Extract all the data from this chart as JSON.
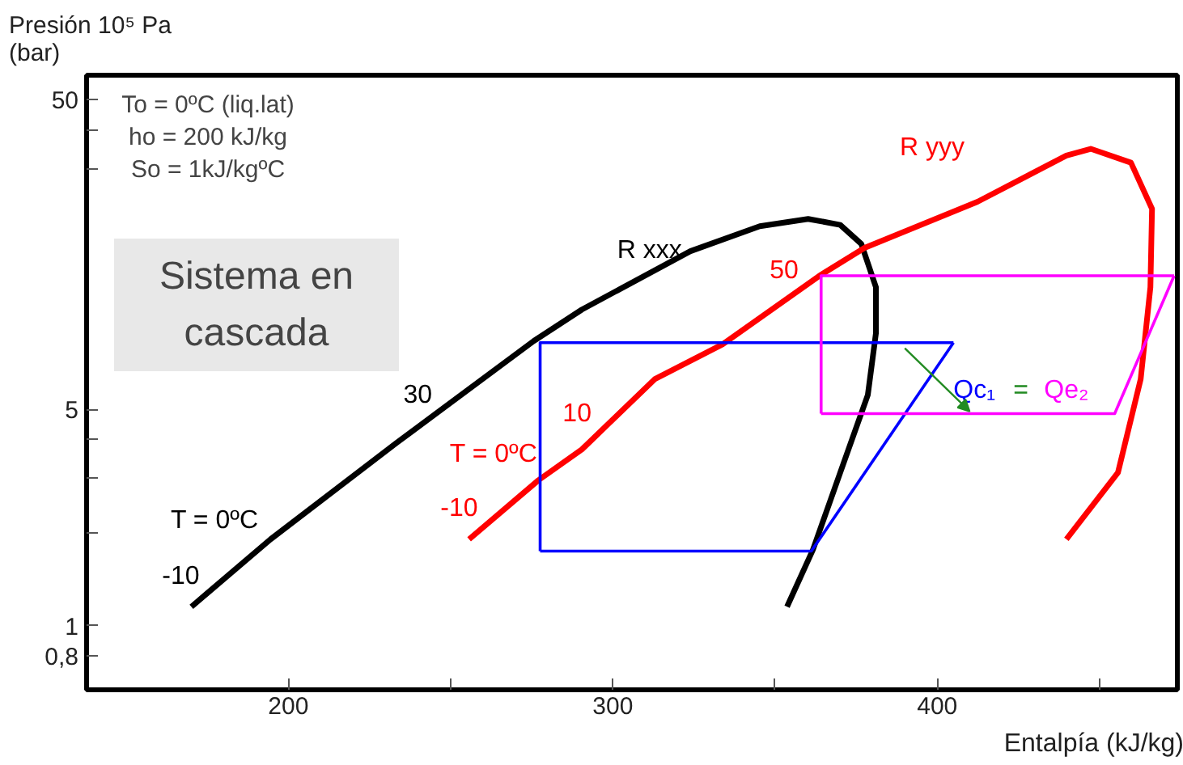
{
  "chart_data": {
    "type": "line",
    "title": "Sistema en cascada",
    "xlabel": "Entalpía (kJ/kg)",
    "ylabel": "Presión 10⁵ Pa\n(bar)",
    "log": true,
    "xlim": [
      137.8,
      474
    ],
    "ylim": [
      0.62,
      60
    ],
    "xticks": [
      200,
      {
        "value": 250,
        "label": null
      },
      300,
      {
        "value": 350,
        "label": null
      },
      400,
      {
        "value": 450,
        "label": null
      }
    ],
    "yticks": [
      {
        "value": 0.8,
        "label": "0,8"
      },
      1,
      {
        "value": 2,
        "label": null
      },
      {
        "value": 3,
        "label": null
      },
      {
        "value": 4,
        "label": null
      },
      5,
      {
        "value": 30,
        "label": null
      },
      {
        "value": 40,
        "label": null
      },
      50
    ],
    "series": [
      {
        "name": "R xxx",
        "color": "#000000",
        "x": [
          170.1,
          194.5,
          233.3,
          275.6,
          290.5,
          323.9,
          345.3,
          360.2,
          370.1,
          376.6,
          381.1,
          381.1,
          378.6,
          370.1,
          361.7,
          353.7
        ],
        "values": [
          1.15,
          1.9,
          3.89,
          8.3,
          10.5,
          16.2,
          19.5,
          20.6,
          19.7,
          17.1,
          12.4,
          8.8,
          5.56,
          3.12,
          1.76,
          1.15
        ]
      },
      {
        "name": "R yyy",
        "color": "#ff0000",
        "x": [
          255.7,
          277.1,
          290.5,
          312.9,
          333.8,
          364.2,
          377.6,
          412.4,
          439.8,
          447.3,
          459.7,
          466.2,
          465.7,
          462.7,
          455.7,
          439.8
        ],
        "values": [
          1.9,
          2.95,
          3.71,
          6.25,
          8.1,
          13.6,
          16.6,
          23.4,
          33,
          34.7,
          31.3,
          22.2,
          12.4,
          6.25,
          3.12,
          1.9
        ]
      },
      {
        "color": "#0000ff",
        "x": [
          277.6,
          277.6,
          405
        ],
        "values": [
          1.74,
          8.2,
          8.2
        ]
      },
      {
        "color": "#0000ff",
        "x": [
          405,
          361.2,
          277.6
        ],
        "values": [
          8.2,
          1.74,
          1.74
        ]
      },
      {
        "color": "#ff00ff",
        "x": [
          364.2,
          364.2,
          473
        ],
        "values": [
          4.84,
          13.5,
          13.5
        ]
      },
      {
        "color": "#ff00ff",
        "x": [
          473,
          454.7,
          364.2
        ],
        "values": [
          13.5,
          4.84,
          4.84
        ]
      }
    ],
    "annotations": [
      "To = 0ºC (liq.lat)",
      "ho = 200 kJ/kg",
      "So = 1kJ/kgºC",
      "Qc₁ = Qe₂",
      {
        "text": "30",
        "x": 251.3,
        "y": 5.37
      },
      {
        "text": "T = 0ºC",
        "x": 197.8,
        "y": 2.02
      },
      {
        "text": "-10",
        "x": 179.6,
        "y": 1.4
      },
      {
        "text": "50",
        "x": 364.2,
        "y": 13.6
      },
      {
        "text": "10",
        "x": 300.4,
        "y": 4.67
      },
      {
        "text": "T = 0ºC",
        "x": 283.8,
        "y": 3.31
      },
      {
        "text": "-10",
        "x": 265.4,
        "y": 2.32
      }
    ]
  }
}
